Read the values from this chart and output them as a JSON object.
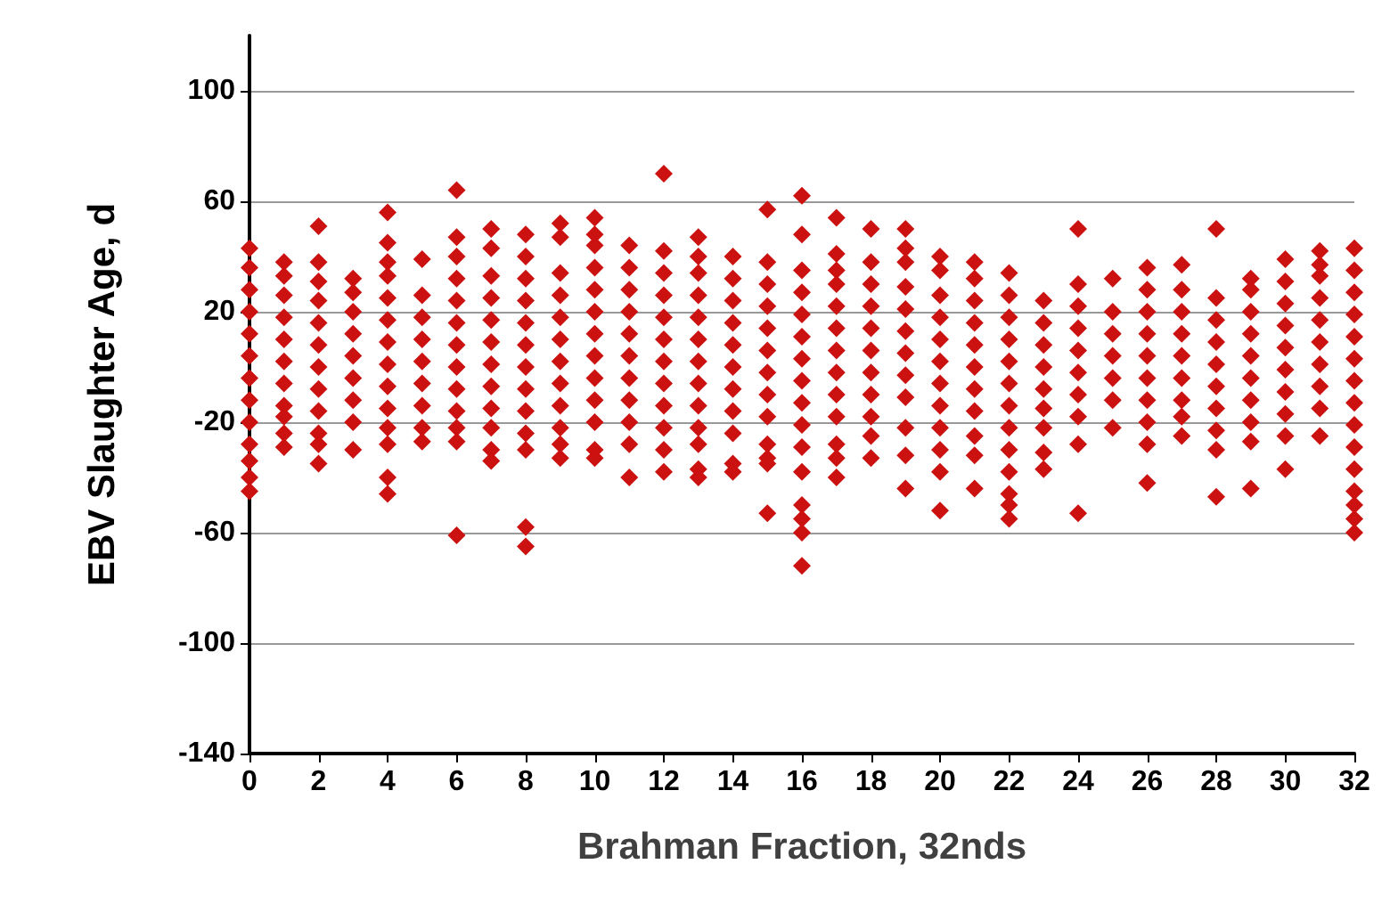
{
  "chart_data": {
    "type": "scatter",
    "xlabel": "Brahman Fraction, 32nds",
    "ylabel": "EBV Slaughter Age, d",
    "xlim": [
      0,
      32
    ],
    "xticks": [
      0,
      2,
      4,
      6,
      8,
      10,
      12,
      14,
      16,
      18,
      20,
      22,
      24,
      26,
      28,
      30,
      32
    ],
    "ylim": [
      -140,
      120
    ],
    "yticks": [
      -140,
      -100,
      -60,
      -20,
      20,
      60,
      100
    ],
    "grid": "y",
    "marker": "diamond",
    "series": [
      {
        "color": "#cc1111",
        "x": [
          0,
          0,
          0,
          0,
          0,
          0,
          0,
          0,
          0,
          0,
          0,
          0,
          0,
          1,
          1,
          1,
          1,
          1,
          1,
          1,
          1,
          1,
          1,
          1,
          2,
          2,
          2,
          2,
          2,
          2,
          2,
          2,
          2,
          2,
          2,
          2,
          3,
          3,
          3,
          3,
          3,
          3,
          3,
          3,
          3,
          4,
          4,
          4,
          4,
          4,
          4,
          4,
          4,
          4,
          4,
          4,
          4,
          4,
          4,
          5,
          5,
          5,
          5,
          5,
          5,
          5,
          5,
          5,
          6,
          6,
          6,
          6,
          6,
          6,
          6,
          6,
          6,
          6,
          6,
          6,
          6,
          7,
          7,
          7,
          7,
          7,
          7,
          7,
          7,
          7,
          7,
          7,
          7,
          8,
          8,
          8,
          8,
          8,
          8,
          8,
          8,
          8,
          8,
          8,
          8,
          8,
          9,
          9,
          9,
          9,
          9,
          9,
          9,
          9,
          9,
          9,
          9,
          9,
          10,
          10,
          10,
          10,
          10,
          10,
          10,
          10,
          10,
          10,
          10,
          10,
          10,
          11,
          11,
          11,
          11,
          11,
          11,
          11,
          11,
          11,
          11,
          11,
          12,
          12,
          12,
          12,
          12,
          12,
          12,
          12,
          12,
          12,
          12,
          12,
          13,
          13,
          13,
          13,
          13,
          13,
          13,
          13,
          13,
          13,
          13,
          13,
          13,
          14,
          14,
          14,
          14,
          14,
          14,
          14,
          14,
          14,
          14,
          14,
          15,
          15,
          15,
          15,
          15,
          15,
          15,
          15,
          15,
          15,
          15,
          15,
          15,
          16,
          16,
          16,
          16,
          16,
          16,
          16,
          16,
          16,
          16,
          16,
          16,
          16,
          16,
          16,
          16,
          17,
          17,
          17,
          17,
          17,
          17,
          17,
          17,
          17,
          17,
          17,
          17,
          17,
          18,
          18,
          18,
          18,
          18,
          18,
          18,
          18,
          18,
          18,
          18,
          19,
          19,
          19,
          19,
          19,
          19,
          19,
          19,
          19,
          19,
          19,
          19,
          20,
          20,
          20,
          20,
          20,
          20,
          20,
          20,
          20,
          20,
          20,
          20,
          21,
          21,
          21,
          21,
          21,
          21,
          21,
          21,
          21,
          21,
          21,
          22,
          22,
          22,
          22,
          22,
          22,
          22,
          22,
          22,
          22,
          22,
          22,
          22,
          23,
          23,
          23,
          23,
          23,
          23,
          23,
          23,
          23,
          24,
          24,
          24,
          24,
          24,
          24,
          24,
          24,
          24,
          24,
          25,
          25,
          25,
          25,
          25,
          25,
          25,
          26,
          26,
          26,
          26,
          26,
          26,
          26,
          26,
          26,
          26,
          27,
          27,
          27,
          27,
          27,
          27,
          27,
          27,
          27,
          28,
          28,
          28,
          28,
          28,
          28,
          28,
          28,
          28,
          28,
          29,
          29,
          29,
          29,
          29,
          29,
          29,
          29,
          29,
          29,
          30,
          30,
          30,
          30,
          30,
          30,
          30,
          30,
          30,
          30,
          31,
          31,
          31,
          31,
          31,
          31,
          31,
          31,
          31,
          31,
          32,
          32,
          32,
          32,
          32,
          32,
          32,
          32,
          32,
          32,
          32,
          32,
          32,
          32,
          32
        ],
        "values": [
          43,
          36,
          28,
          20,
          12,
          4,
          -4,
          -12,
          -20,
          -28,
          -34,
          -40,
          -45,
          38,
          33,
          26,
          18,
          10,
          2,
          -6,
          -14,
          -18,
          -24,
          -29,
          51,
          38,
          31,
          24,
          16,
          8,
          0,
          -8,
          -16,
          -24,
          -28,
          -35,
          32,
          27,
          20,
          12,
          4,
          -4,
          -12,
          -20,
          -30,
          56,
          45,
          38,
          33,
          25,
          17,
          9,
          1,
          -7,
          -15,
          -22,
          -28,
          -40,
          -46,
          39,
          26,
          18,
          10,
          2,
          -6,
          -14,
          -22,
          -27,
          64,
          47,
          40,
          32,
          24,
          16,
          8,
          0,
          -8,
          -16,
          -22,
          -27,
          -61,
          50,
          43,
          33,
          25,
          17,
          9,
          1,
          -7,
          -15,
          -22,
          -30,
          -34,
          48,
          40,
          32,
          24,
          16,
          8,
          0,
          -8,
          -16,
          -24,
          -30,
          -58,
          -65,
          52,
          47,
          34,
          26,
          18,
          10,
          2,
          -6,
          -14,
          -22,
          -28,
          -33,
          54,
          48,
          44,
          36,
          28,
          20,
          12,
          4,
          -4,
          -12,
          -20,
          -30,
          -33,
          44,
          36,
          28,
          20,
          12,
          4,
          -4,
          -12,
          -20,
          -28,
          -40,
          70,
          42,
          34,
          26,
          18,
          10,
          2,
          -6,
          -14,
          -22,
          -30,
          -38,
          47,
          40,
          34,
          26,
          18,
          10,
          2,
          -6,
          -14,
          -22,
          -28,
          -37,
          -40,
          40,
          32,
          24,
          16,
          8,
          0,
          -8,
          -16,
          -24,
          -35,
          -38,
          57,
          38,
          30,
          22,
          14,
          6,
          -2,
          -10,
          -18,
          -28,
          -33,
          -35,
          -53,
          62,
          48,
          35,
          27,
          19,
          11,
          3,
          -5,
          -13,
          -21,
          -29,
          -38,
          -50,
          -55,
          -60,
          -72,
          54,
          41,
          35,
          30,
          22,
          14,
          6,
          -2,
          -10,
          -18,
          -28,
          -33,
          -40,
          50,
          38,
          30,
          22,
          14,
          6,
          -2,
          -10,
          -18,
          -25,
          -33,
          50,
          43,
          38,
          29,
          21,
          13,
          5,
          -3,
          -11,
          -22,
          -32,
          -44,
          40,
          35,
          26,
          18,
          10,
          2,
          -6,
          -14,
          -22,
          -30,
          -38,
          -52,
          38,
          32,
          24,
          16,
          8,
          0,
          -8,
          -16,
          -25,
          -32,
          -44,
          34,
          26,
          18,
          10,
          2,
          -6,
          -14,
          -22,
          -30,
          -38,
          -46,
          -50,
          -55,
          24,
          16,
          8,
          0,
          -8,
          -15,
          -22,
          -31,
          -37,
          50,
          30,
          22,
          14,
          6,
          -2,
          -10,
          -18,
          -28,
          -53,
          32,
          20,
          12,
          4,
          -4,
          -12,
          -22,
          36,
          28,
          20,
          12,
          4,
          -4,
          -12,
          -20,
          -28,
          -42,
          37,
          28,
          20,
          12,
          4,
          -4,
          -12,
          -18,
          -25,
          50,
          25,
          17,
          9,
          1,
          -7,
          -15,
          -23,
          -30,
          -47,
          32,
          28,
          20,
          12,
          4,
          -4,
          -12,
          -20,
          -27,
          -44,
          39,
          31,
          23,
          15,
          7,
          -1,
          -9,
          -17,
          -25,
          -37,
          42,
          37,
          33,
          25,
          17,
          9,
          1,
          -7,
          -15,
          -25,
          43,
          35,
          27,
          19,
          11,
          3,
          -5,
          -13,
          -21,
          -29,
          -37,
          -45,
          -50,
          -55,
          -60
        ]
      }
    ]
  }
}
